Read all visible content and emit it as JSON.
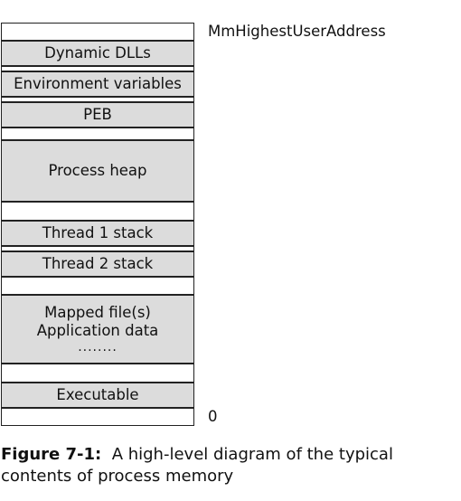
{
  "diagram": {
    "top_address": "MmHighestUserAddress",
    "bottom_address": "0",
    "segments": [
      {
        "label": "",
        "kind": "free"
      },
      {
        "label": "Dynamic DLLs",
        "kind": "filled"
      },
      {
        "label": "",
        "kind": "free"
      },
      {
        "label": "Environment variables",
        "kind": "filled"
      },
      {
        "label": "",
        "kind": "free"
      },
      {
        "label": "PEB",
        "kind": "filled"
      },
      {
        "label": "",
        "kind": "free"
      },
      {
        "label": "Process heap",
        "kind": "filled"
      },
      {
        "label": "",
        "kind": "free"
      },
      {
        "label": "Thread 1 stack",
        "kind": "filled"
      },
      {
        "label": "",
        "kind": "free"
      },
      {
        "label": "Thread 2 stack",
        "kind": "filled"
      },
      {
        "label": "",
        "kind": "free"
      },
      {
        "lines": [
          "Mapped file(s)",
          "Application data",
          "........"
        ],
        "kind": "filled"
      },
      {
        "label": "",
        "kind": "free"
      },
      {
        "label": "Executable",
        "kind": "filled"
      },
      {
        "label": "",
        "kind": "free"
      }
    ]
  },
  "caption": {
    "figure_label": "Figure 7-1:",
    "text": "A high-level diagram of the typical contents of process memory"
  }
}
